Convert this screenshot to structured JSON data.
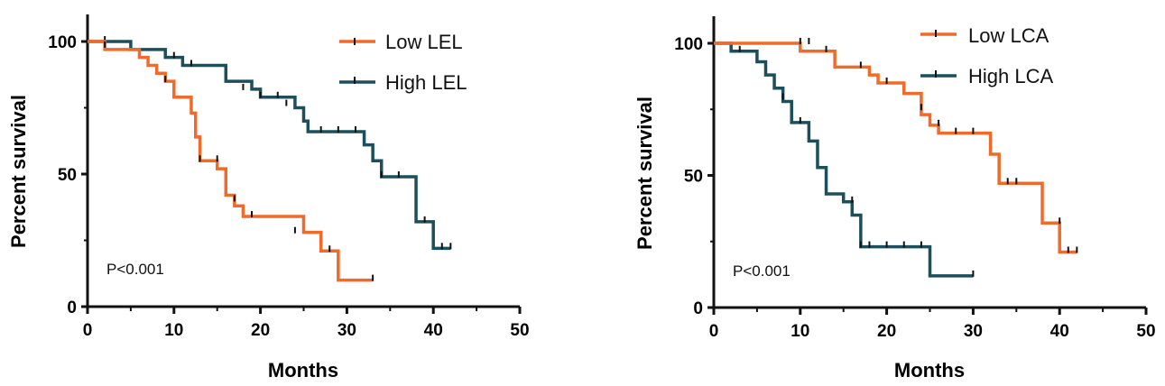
{
  "chart_data": [
    {
      "type": "line",
      "subtype": "kaplan-meier",
      "xlabel": "Months",
      "ylabel": "Percent survival",
      "xlim": [
        0,
        50
      ],
      "ylim": [
        0,
        100
      ],
      "xticks": [
        "0",
        "10",
        "20",
        "30",
        "40",
        "50"
      ],
      "yticks": [
        "0",
        "50",
        "100"
      ],
      "grid": false,
      "legend_position": "top-right",
      "annotation": "P<0.001",
      "series": [
        {
          "name": "Low LEL",
          "color": "#F06A2A",
          "steps": [
            [
              0,
              100
            ],
            [
              2,
              97
            ],
            [
              5,
              97
            ],
            [
              6,
              94
            ],
            [
              7,
              91
            ],
            [
              8,
              88
            ],
            [
              9,
              85
            ],
            [
              10,
              79
            ],
            [
              12,
              73
            ],
            [
              12.5,
              64
            ],
            [
              13,
              55
            ],
            [
              15,
              52
            ],
            [
              16,
              42
            ],
            [
              17,
              38
            ],
            [
              18,
              34
            ],
            [
              24,
              34
            ],
            [
              25,
              28
            ],
            [
              27,
              21
            ],
            [
              29,
              21
            ],
            [
              29,
              10
            ],
            [
              33,
              10
            ]
          ],
          "censored": [
            [
              2,
              98
            ],
            [
              9,
              85
            ],
            [
              13,
              55
            ],
            [
              15,
              55
            ],
            [
              17,
              40
            ],
            [
              19,
              34
            ],
            [
              24,
              28
            ],
            [
              28,
              21
            ],
            [
              33,
              10
            ]
          ]
        },
        {
          "name": "High LEL",
          "color": "#1C4F5C",
          "steps": [
            [
              0,
              100
            ],
            [
              5,
              100
            ],
            [
              5,
              97
            ],
            [
              8,
              97
            ],
            [
              9,
              94
            ],
            [
              11,
              91
            ],
            [
              15,
              91
            ],
            [
              16,
              85
            ],
            [
              19,
              82
            ],
            [
              20,
              79
            ],
            [
              23,
              79
            ],
            [
              24,
              75
            ],
            [
              25,
              70
            ],
            [
              25.5,
              66
            ],
            [
              31,
              66
            ],
            [
              32,
              61
            ],
            [
              33,
              55
            ],
            [
              34,
              49
            ],
            [
              38,
              49
            ],
            [
              38,
              32
            ],
            [
              40,
              32
            ],
            [
              40,
              22
            ],
            [
              42,
              22
            ]
          ],
          "censored": [
            [
              2,
              100
            ],
            [
              10,
              94
            ],
            [
              12,
              91
            ],
            [
              18,
              82
            ],
            [
              20,
              79
            ],
            [
              22,
              79
            ],
            [
              23,
              76
            ],
            [
              27,
              66
            ],
            [
              29,
              66
            ],
            [
              31,
              66
            ],
            [
              34,
              49
            ],
            [
              36,
              49
            ],
            [
              39,
              32
            ],
            [
              41,
              22
            ],
            [
              42,
              22
            ]
          ]
        }
      ]
    },
    {
      "type": "line",
      "subtype": "kaplan-meier",
      "xlabel": "Months",
      "ylabel": "Percent survival",
      "xlim": [
        0,
        50
      ],
      "ylim": [
        0,
        100
      ],
      "xticks": [
        "0",
        "10",
        "20",
        "30",
        "40",
        "50"
      ],
      "yticks": [
        "0",
        "50",
        "100"
      ],
      "grid": false,
      "legend_position": "top-right",
      "annotation": "P<0.001",
      "series": [
        {
          "name": "Low LCA",
          "color": "#F06A2A",
          "steps": [
            [
              0,
              100
            ],
            [
              10,
              100
            ],
            [
              10,
              97
            ],
            [
              14,
              97
            ],
            [
              14,
              91
            ],
            [
              18,
              91
            ],
            [
              18,
              88
            ],
            [
              19,
              85
            ],
            [
              21,
              85
            ],
            [
              22,
              81
            ],
            [
              24,
              81
            ],
            [
              24,
              73
            ],
            [
              25,
              69
            ],
            [
              26,
              69
            ],
            [
              26,
              66
            ],
            [
              32,
              66
            ],
            [
              32,
              58
            ],
            [
              33,
              47
            ],
            [
              38,
              47
            ],
            [
              38,
              32
            ],
            [
              40,
              32
            ],
            [
              40,
              21
            ],
            [
              42,
              21
            ]
          ],
          "censored": [
            [
              10,
              100
            ],
            [
              11,
              100
            ],
            [
              13,
              97
            ],
            [
              17,
              91
            ],
            [
              20,
              85
            ],
            [
              24,
              75
            ],
            [
              26,
              69
            ],
            [
              28,
              66
            ],
            [
              30,
              66
            ],
            [
              34,
              47
            ],
            [
              35,
              47
            ],
            [
              40,
              32
            ],
            [
              41,
              21
            ],
            [
              42,
              21
            ]
          ]
        },
        {
          "name": "High LCA",
          "color": "#1C4F5C",
          "steps": [
            [
              0,
              100
            ],
            [
              2,
              100
            ],
            [
              2,
              97
            ],
            [
              5,
              97
            ],
            [
              5,
              93
            ],
            [
              6,
              88
            ],
            [
              7,
              83
            ],
            [
              8,
              78
            ],
            [
              9,
              70
            ],
            [
              11,
              70
            ],
            [
              11,
              63
            ],
            [
              12,
              53
            ],
            [
              13,
              43
            ],
            [
              15,
              43
            ],
            [
              15,
              40
            ],
            [
              16,
              35
            ],
            [
              17,
              23
            ],
            [
              25,
              23
            ],
            [
              25,
              12
            ],
            [
              30,
              12
            ]
          ],
          "censored": [
            [
              3,
              97
            ],
            [
              8,
              79
            ],
            [
              10,
              70
            ],
            [
              16,
              40
            ],
            [
              17,
              23
            ],
            [
              18,
              23
            ],
            [
              20,
              23
            ],
            [
              22,
              23
            ],
            [
              24,
              23
            ],
            [
              30,
              12
            ]
          ]
        }
      ]
    }
  ]
}
